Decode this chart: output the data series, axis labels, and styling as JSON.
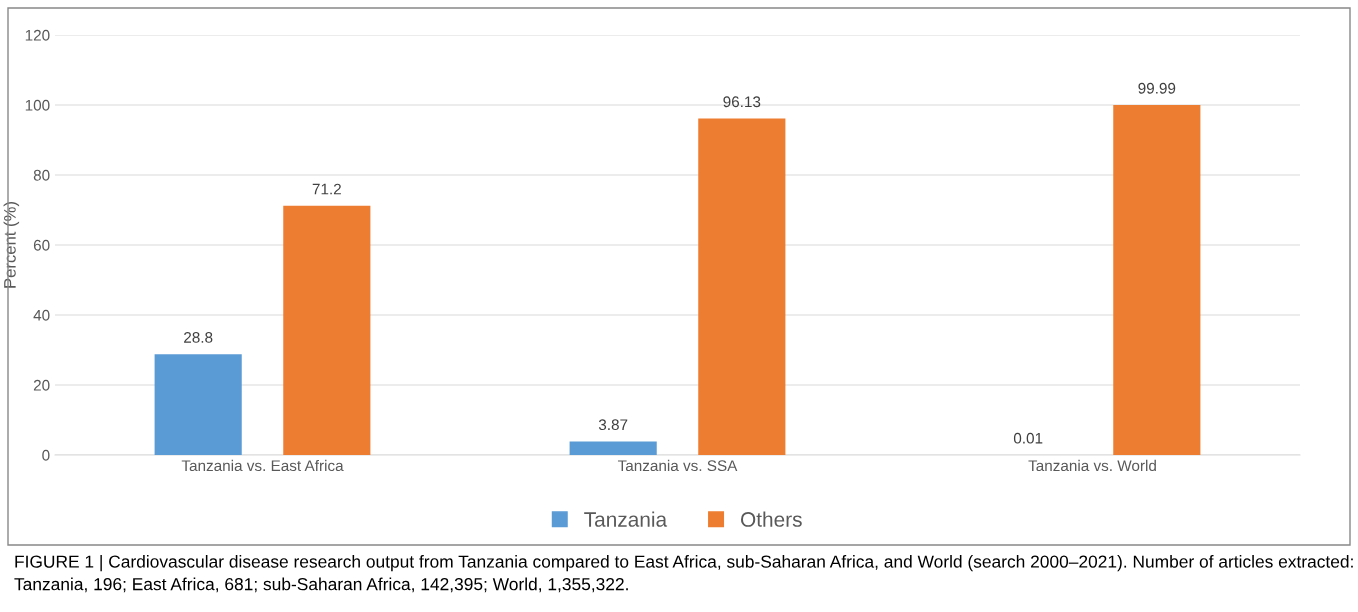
{
  "chart_data": {
    "type": "bar",
    "ylabel": "Percent (%)",
    "categories": [
      "Tanzania vs. East Africa",
      "Tanzania vs. SSA",
      "Tanzania vs. World"
    ],
    "series": [
      {
        "name": "Tanzania",
        "color": "#5b9bd5",
        "values": [
          28.8,
          3.87,
          0.01
        ]
      },
      {
        "name": "Others",
        "color": "#ed7d31",
        "values": [
          71.2,
          96.13,
          99.99
        ]
      }
    ],
    "ylim": [
      0,
      120
    ],
    "yticks": [
      0,
      20,
      40,
      60,
      80,
      100,
      120
    ],
    "grid": "y",
    "legend": "bottom",
    "data_labels": true,
    "annotations": [
      "FIGURE 1 | Cardiovascular disease research output from Tanzania compared to East Africa, sub-Saharan Africa, and World (search 2000–2021). Number of articles extracted: Tanzania, 196; East Africa, 681; sub-Saharan Africa, 142,395; World, 1,355,322."
    ]
  }
}
